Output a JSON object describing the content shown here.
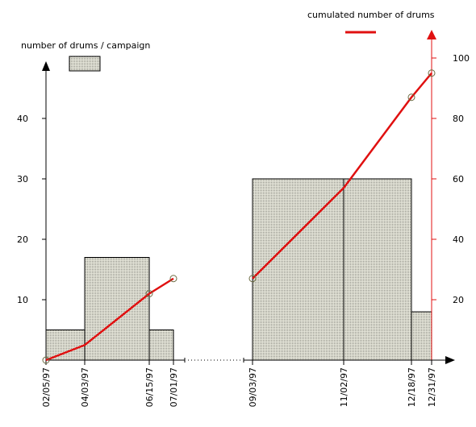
{
  "chart_data": {
    "type": "bar+line",
    "colors": {
      "bar_fill": "#dcdccf",
      "bar_hatch": "#8c8c84",
      "line": "#e01010",
      "axis_right": "#e01010",
      "axis_left": "#000000"
    },
    "legend": {
      "bars_label": "number of drums / campaign",
      "line_label": "cumulated number of drums",
      "placement": "top"
    },
    "x_ticks": [
      "02/05/97",
      "04/03/97",
      "06/15/97",
      "07/01/97",
      "09/03/97",
      "11/02/97",
      "12/18/97",
      "12/31/97"
    ],
    "x_axis_break": true,
    "left_axis": {
      "ticks": [
        10,
        20,
        30,
        40
      ],
      "ylim": [
        0,
        50
      ]
    },
    "right_axis": {
      "ticks": [
        20,
        40,
        60,
        80,
        100
      ],
      "ylim": [
        0,
        106
      ]
    },
    "bars": [
      {
        "start": "02/05/97",
        "end": "04/03/97",
        "value": 5
      },
      {
        "start": "04/03/97",
        "end": "06/15/97",
        "value": 17
      },
      {
        "start": "06/15/97",
        "end": "07/01/97",
        "value": 5
      },
      {
        "start": "09/03/97",
        "end": "11/02/97",
        "value": 30
      },
      {
        "start": "11/02/97",
        "end": "12/18/97",
        "value": 30
      },
      {
        "start": "12/18/97",
        "end": "12/31/97",
        "value": 8
      }
    ],
    "cumulative_line": {
      "segments": [
        [
          {
            "x": "02/05/97",
            "y": 0,
            "marker": true
          },
          {
            "x": "04/03/97",
            "y": 5,
            "marker": false
          },
          {
            "x": "06/15/97",
            "y": 22,
            "marker": true
          },
          {
            "x": "07/01/97",
            "y": 27,
            "marker": true
          }
        ],
        [
          {
            "x": "09/03/97",
            "y": 27,
            "marker": true
          },
          {
            "x": "11/02/97",
            "y": 57,
            "marker": false
          },
          {
            "x": "12/18/97",
            "y": 87,
            "marker": true
          },
          {
            "x": "12/31/97",
            "y": 95,
            "marker": true
          }
        ]
      ]
    }
  }
}
